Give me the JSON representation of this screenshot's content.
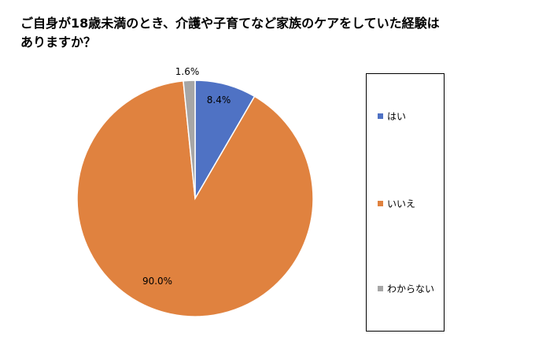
{
  "title": {
    "line1": "ご自身が18歳未満のとき、介護や子育てなど家族のケアをしていた経験は",
    "line2": "ありますか？"
  },
  "chart_data": {
    "type": "pie",
    "title": "ご自身が18歳未満のとき、介護や子育てなど家族のケアをしていた経験はありますか？",
    "start": "12 o'clock, clockwise",
    "slices": [
      {
        "name": "はい",
        "value": 8.4,
        "label": "8.4%",
        "color": "#4F72C4"
      },
      {
        "name": "いいえ",
        "value": 90.0,
        "label": "90.0%",
        "color": "#E0823F"
      },
      {
        "name": "わからない",
        "value": 1.6,
        "label": "1.6%",
        "color": "#A6A6A6"
      }
    ],
    "legend_position": "right"
  }
}
